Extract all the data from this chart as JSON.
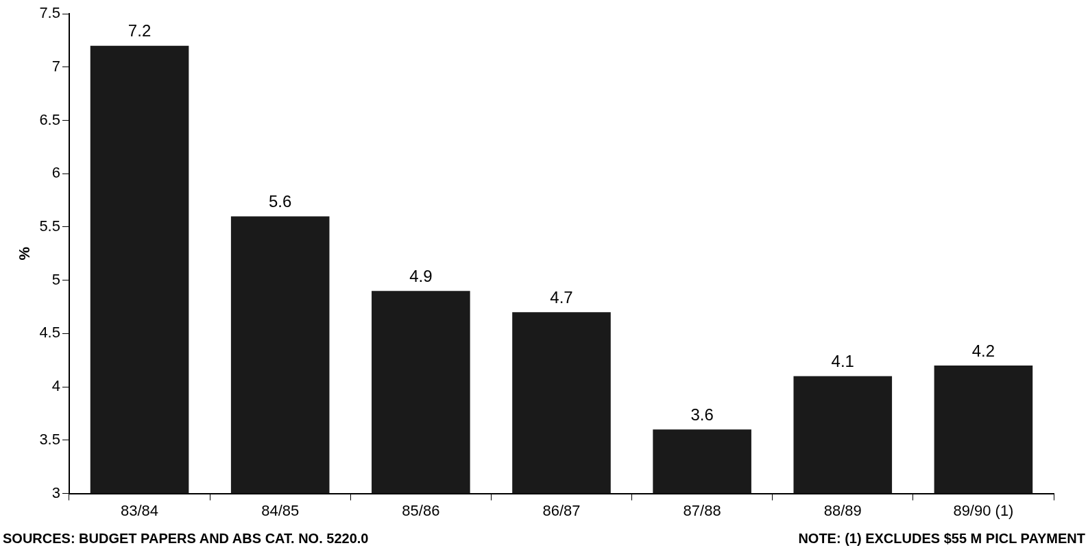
{
  "chart_data": {
    "type": "bar",
    "ylabel": "%",
    "categories": [
      "83/84",
      "84/85",
      "85/86",
      "86/87",
      "87/88",
      "88/89",
      "89/90 (1)"
    ],
    "values": [
      7.2,
      5.6,
      4.9,
      4.7,
      3.6,
      4.1,
      4.2
    ],
    "color": "#1a1a1a",
    "ylim": [
      3,
      7.5
    ],
    "yticks": [
      3,
      3.5,
      4,
      4.5,
      5,
      5.5,
      6,
      6.5,
      7,
      7.5
    ],
    "grid": false,
    "legend": false,
    "data_labels": true,
    "annotations": [
      "SOURCES: BUDGET PAPERS AND ABS CAT. NO. 5220.0",
      "NOTE: (1) EXCLUDES $55 M PICL PAYMENT"
    ]
  }
}
